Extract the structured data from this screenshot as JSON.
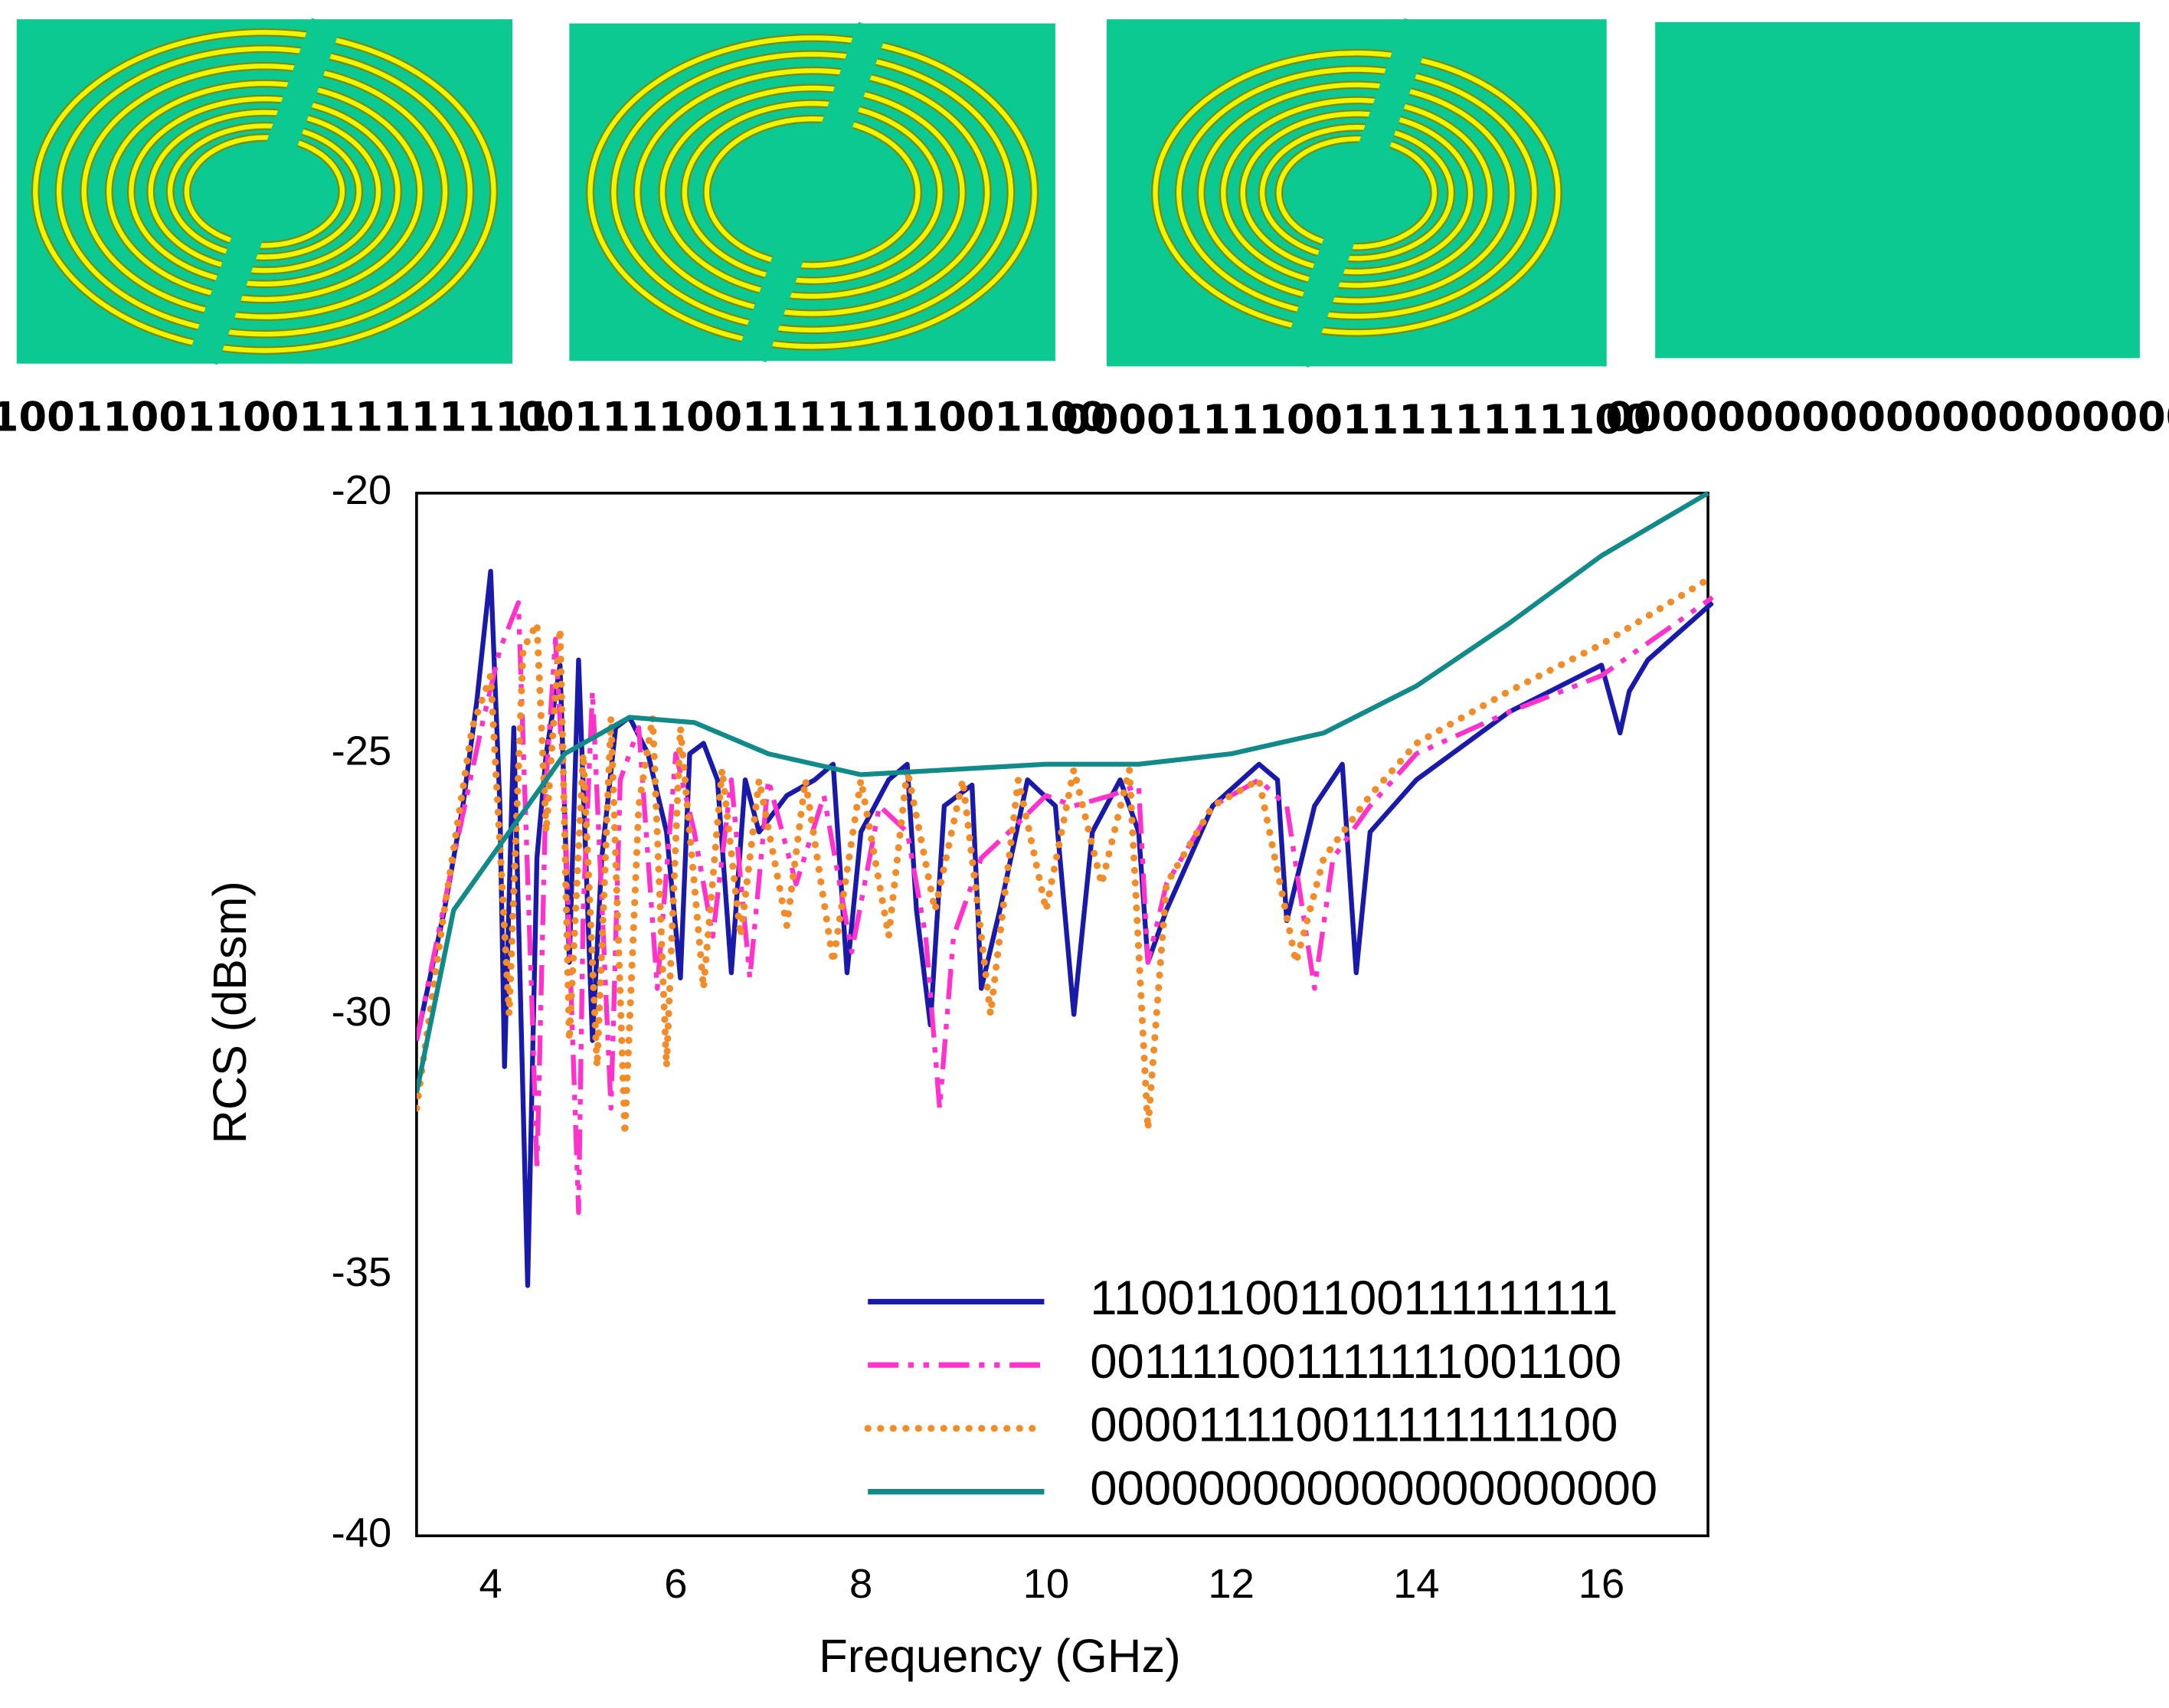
{
  "chart_data": {
    "type": "line",
    "xlabel": "Frequency (GHz)",
    "ylabel": "RCS (dBsm)",
    "xlim": [
      3.2,
      17.15
    ],
    "ylim": [
      -40,
      -20
    ],
    "xticks": [
      4,
      6,
      8,
      10,
      12,
      14,
      16
    ],
    "yticks": [
      -40,
      -35,
      -30,
      -25,
      -20
    ],
    "grid": false,
    "legend": "lower right",
    "series": [
      {
        "name": "110011001100111111111",
        "color": "#1a1aaa",
        "dash": "solid",
        "x": [
          3.2,
          3.5,
          3.7,
          3.85,
          4.0,
          4.1,
          4.15,
          4.25,
          4.4,
          4.5,
          4.6,
          4.75,
          4.85,
          4.95,
          5.1,
          5.2,
          5.35,
          5.5,
          5.7,
          5.9,
          6.05,
          6.15,
          6.3,
          6.45,
          6.6,
          6.75,
          6.9,
          7.2,
          7.5,
          7.7,
          7.85,
          8.0,
          8.3,
          8.5,
          8.6,
          8.75,
          8.9,
          9.2,
          9.3,
          9.5,
          9.8,
          10.1,
          10.3,
          10.5,
          10.8,
          11.0,
          11.1,
          11.3,
          11.8,
          12.3,
          12.5,
          12.6,
          12.9,
          13.2,
          13.35,
          13.5,
          14,
          15,
          16,
          16.2,
          16.3,
          16.5,
          17.2
        ],
        "values": [
          -30.5,
          -28,
          -26,
          -24,
          -21.5,
          -26,
          -31,
          -24.5,
          -35.2,
          -27,
          -25,
          -23.3,
          -29,
          -23.2,
          -30.5,
          -27,
          -24.5,
          -24.3,
          -25,
          -26.5,
          -29.3,
          -25,
          -24.8,
          -25.5,
          -29.2,
          -25.5,
          -26.5,
          -25.8,
          -25.5,
          -25.2,
          -29.2,
          -26.5,
          -25.5,
          -25.2,
          -28,
          -30.2,
          -26,
          -25.6,
          -29.5,
          -28,
          -25.5,
          -26,
          -30,
          -26.5,
          -25.5,
          -26.5,
          -29,
          -28,
          -26,
          -25.2,
          -25.5,
          -28.2,
          -26,
          -25.2,
          -29.2,
          -26.5,
          -25.5,
          -24.2,
          -23.3,
          -24.6,
          -23.8,
          -23.2,
          -22.1
        ]
      },
      {
        "name": "001111001111111001100",
        "color": "#ff33cc",
        "dash": "dashdot",
        "x": [
          3.2,
          3.6,
          3.9,
          4.1,
          4.3,
          4.45,
          4.5,
          4.6,
          4.7,
          4.8,
          4.95,
          5.0,
          5.1,
          5.3,
          5.4,
          5.6,
          5.8,
          6.0,
          6.2,
          6.4,
          6.6,
          6.8,
          7.0,
          7.3,
          7.6,
          7.9,
          8.2,
          8.5,
          8.7,
          8.85,
          9.0,
          9.3,
          9.6,
          10.0,
          10.3,
          10.7,
          11.0,
          11.1,
          11.3,
          11.8,
          12.3,
          12.6,
          12.9,
          13.1,
          13.5,
          14,
          15,
          16,
          17.2
        ],
        "values": [
          -30.5,
          -27,
          -24.5,
          -23,
          -22.1,
          -30,
          -33,
          -25.5,
          -22.8,
          -26,
          -33.8,
          -28,
          -23.8,
          -31.8,
          -25.5,
          -24.5,
          -29.5,
          -25,
          -26.5,
          -28.5,
          -25.5,
          -29.3,
          -25.5,
          -27.5,
          -25.8,
          -28.8,
          -26,
          -26.5,
          -28.5,
          -31.8,
          -28.5,
          -27,
          -26.5,
          -25.8,
          -26,
          -25.8,
          -25.6,
          -29,
          -27.5,
          -26,
          -25.5,
          -26,
          -29.5,
          -27,
          -26,
          -25,
          -24.2,
          -23.5,
          -22
        ]
      },
      {
        "name": "000011110011111111100",
        "color": "#f28c28",
        "dash": "dotted",
        "x": [
          3.2,
          3.5,
          3.8,
          4.0,
          4.2,
          4.35,
          4.5,
          4.6,
          4.75,
          4.85,
          5.0,
          5.15,
          5.3,
          5.45,
          5.6,
          5.75,
          5.9,
          6.05,
          6.3,
          6.5,
          6.7,
          6.9,
          7.2,
          7.4,
          7.7,
          8.0,
          8.3,
          8.5,
          8.8,
          9.1,
          9.4,
          9.7,
          10.0,
          10.3,
          10.6,
          10.9,
          11.1,
          11.3,
          11.8,
          12.3,
          12.7,
          13.0,
          13.5,
          14,
          15,
          16,
          17.2
        ],
        "values": [
          -31.8,
          -28,
          -24.5,
          -23.5,
          -30,
          -23,
          -22.5,
          -26.5,
          -22.6,
          -30.5,
          -25,
          -31,
          -24.3,
          -32.3,
          -26,
          -24.3,
          -31,
          -24.5,
          -29.5,
          -25.3,
          -28.5,
          -25.5,
          -28.3,
          -25.5,
          -29,
          -25.5,
          -28.5,
          -25.3,
          -28,
          -25.5,
          -30,
          -25.5,
          -28,
          -25.3,
          -27.5,
          -25.3,
          -32.2,
          -27.5,
          -26,
          -25.5,
          -29,
          -27,
          -25.8,
          -24.8,
          -23.8,
          -22.9,
          -21.6
        ]
      },
      {
        "name": "000000000000000000000",
        "color": "#138a8a",
        "dash": "solid",
        "x": [
          3.2,
          3.6,
          4.2,
          4.8,
          5.5,
          6.2,
          7.0,
          8.0,
          9.0,
          10.0,
          11.0,
          12.0,
          13.0,
          14.0,
          15.0,
          16.0,
          17.15
        ],
        "values": [
          -31.5,
          -28,
          -26.5,
          -25,
          -24.3,
          -24.4,
          -25,
          -25.4,
          -25.3,
          -25.2,
          -25.2,
          -25,
          -24.6,
          -23.7,
          -22.5,
          -21.2,
          -20
        ]
      }
    ]
  }
}
